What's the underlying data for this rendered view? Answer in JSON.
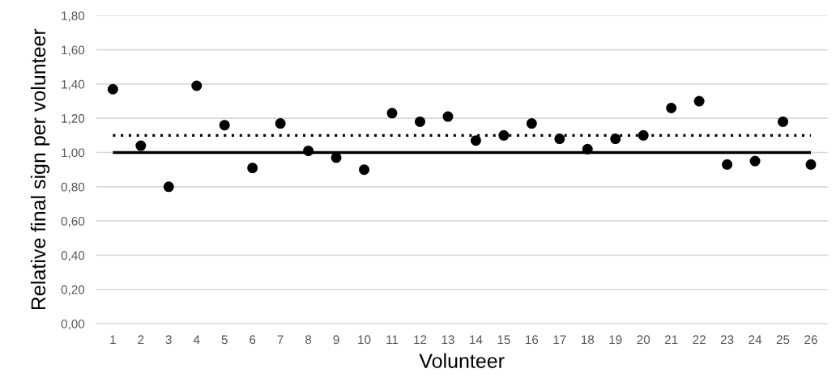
{
  "chart_data": {
    "type": "scatter",
    "xlabel": "Volunteer",
    "ylabel": "Relative final sign per volunteer",
    "categories": [
      "1",
      "2",
      "3",
      "4",
      "5",
      "6",
      "7",
      "8",
      "9",
      "10",
      "11",
      "12",
      "13",
      "14",
      "15",
      "16",
      "17",
      "18",
      "19",
      "20",
      "21",
      "22",
      "23",
      "24",
      "25",
      "26"
    ],
    "series": [
      {
        "color": "#000000",
        "values": [
          1.37,
          1.04,
          0.8,
          1.39,
          1.16,
          0.91,
          1.17,
          1.01,
          0.97,
          0.9,
          1.23,
          1.18,
          1.21,
          1.07,
          1.1,
          1.17,
          1.08,
          1.02,
          1.08,
          1.1,
          1.26,
          1.3,
          0.93,
          0.95,
          1.18,
          0.93
        ]
      }
    ],
    "ylim": [
      0,
      1.8
    ],
    "yticks": [
      {
        "value": 0,
        "label": "0,00"
      },
      {
        "value": 0.2,
        "label": "0,20"
      },
      {
        "value": 0.4,
        "label": "0,40"
      },
      {
        "value": 0.6,
        "label": "0,60"
      },
      {
        "value": 0.8,
        "label": "0,80"
      },
      {
        "value": 1.0,
        "label": "1,00"
      },
      {
        "value": 1.2,
        "label": "1,20"
      },
      {
        "value": 1.4,
        "label": "1,40"
      },
      {
        "value": 1.6,
        "label": "1,60"
      },
      {
        "value": 1.8,
        "label": "1,80"
      }
    ],
    "ref_lines": [
      {
        "axis": "y",
        "value": 1.0,
        "color": "#000000",
        "line_style": "solid"
      },
      {
        "axis": "y",
        "value": 1.1,
        "color": "#000000",
        "line_style": "dotted"
      }
    ],
    "grid": "y",
    "marker": "circle",
    "legend": false
  }
}
